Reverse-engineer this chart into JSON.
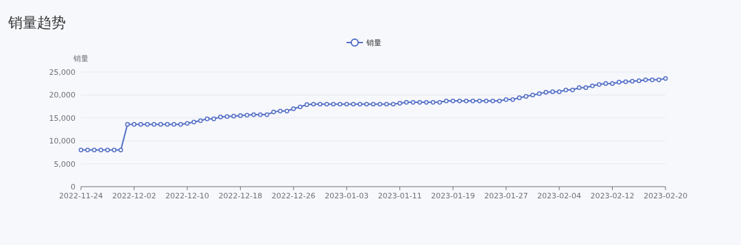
{
  "chart_data": {
    "type": "line",
    "title": "销量趋势",
    "ylabel": "销量",
    "x": [
      "2022-11-24",
      "2022-11-25",
      "2022-11-26",
      "2022-11-27",
      "2022-11-28",
      "2022-11-29",
      "2022-11-30",
      "2022-12-01",
      "2022-12-02",
      "2022-12-03",
      "2022-12-04",
      "2022-12-05",
      "2022-12-06",
      "2022-12-07",
      "2022-12-08",
      "2022-12-09",
      "2022-12-10",
      "2022-12-11",
      "2022-12-12",
      "2022-12-13",
      "2022-12-14",
      "2022-12-15",
      "2022-12-16",
      "2022-12-17",
      "2022-12-18",
      "2022-12-19",
      "2022-12-20",
      "2022-12-21",
      "2022-12-22",
      "2022-12-23",
      "2022-12-24",
      "2022-12-25",
      "2022-12-26",
      "2022-12-27",
      "2022-12-28",
      "2022-12-29",
      "2022-12-30",
      "2022-12-31",
      "2023-01-01",
      "2023-01-02",
      "2023-01-03",
      "2023-01-04",
      "2023-01-05",
      "2023-01-06",
      "2023-01-07",
      "2023-01-08",
      "2023-01-09",
      "2023-01-10",
      "2023-01-11",
      "2023-01-12",
      "2023-01-13",
      "2023-01-14",
      "2023-01-15",
      "2023-01-16",
      "2023-01-17",
      "2023-01-18",
      "2023-01-19",
      "2023-01-20",
      "2023-01-21",
      "2023-01-22",
      "2023-01-23",
      "2023-01-24",
      "2023-01-25",
      "2023-01-26",
      "2023-01-27",
      "2023-01-28",
      "2023-01-29",
      "2023-01-30",
      "2023-01-31",
      "2023-02-01",
      "2023-02-02",
      "2023-02-03",
      "2023-02-04",
      "2023-02-05",
      "2023-02-06",
      "2023-02-07",
      "2023-02-08",
      "2023-02-09",
      "2023-02-10",
      "2023-02-11",
      "2023-02-12",
      "2023-02-13",
      "2023-02-14",
      "2023-02-15",
      "2023-02-16",
      "2023-02-17",
      "2023-02-18",
      "2023-02-19",
      "2023-02-20"
    ],
    "series": [
      {
        "name": "销量",
        "color": "#5470c6",
        "values": [
          8000,
          8000,
          8000,
          8000,
          8000,
          8000,
          8000,
          13600,
          13600,
          13600,
          13600,
          13600,
          13600,
          13600,
          13600,
          13600,
          13800,
          14100,
          14400,
          14800,
          14800,
          15200,
          15300,
          15400,
          15500,
          15600,
          15700,
          15700,
          15700,
          16300,
          16500,
          16500,
          17000,
          17400,
          17900,
          18000,
          18000,
          18000,
          18000,
          18000,
          18000,
          18000,
          18000,
          18000,
          18000,
          18000,
          18000,
          18000,
          18200,
          18400,
          18400,
          18400,
          18400,
          18400,
          18400,
          18700,
          18700,
          18700,
          18700,
          18700,
          18700,
          18700,
          18700,
          18700,
          19000,
          19000,
          19400,
          19700,
          20000,
          20300,
          20600,
          20700,
          20700,
          21100,
          21100,
          21600,
          21600,
          22000,
          22300,
          22500,
          22500,
          22800,
          22900,
          23000,
          23100,
          23300,
          23300,
          23300,
          23600
        ]
      }
    ],
    "xlim": [
      "2022-11-24",
      "2023-02-20"
    ],
    "xticks": [
      "2022-11-24",
      "2022-12-02",
      "2022-12-10",
      "2022-12-18",
      "2022-12-26",
      "2023-01-03",
      "2023-01-11",
      "2023-01-19",
      "2023-01-27",
      "2023-02-04",
      "2023-02-12",
      "2023-02-20"
    ],
    "ylim": [
      0,
      25000
    ],
    "yticks": [
      {
        "value": 0,
        "label": "0"
      },
      {
        "value": 5000,
        "label": "5,000"
      },
      {
        "value": 10000,
        "label": "10,000"
      },
      {
        "value": 15000,
        "label": "15,000"
      },
      {
        "value": 20000,
        "label": "20,000"
      },
      {
        "value": 25000,
        "label": "25,000"
      }
    ],
    "grid": "y",
    "legend": "top",
    "marker": "circle",
    "line_style": "solid"
  }
}
